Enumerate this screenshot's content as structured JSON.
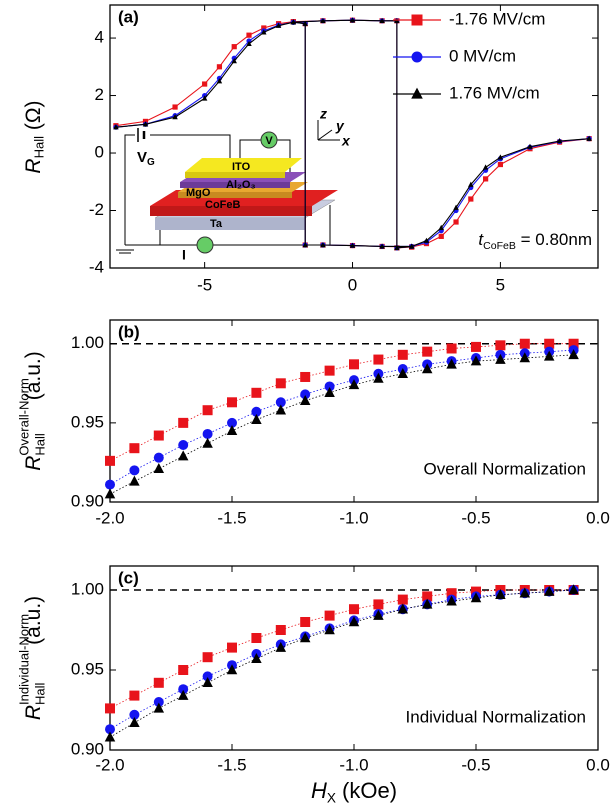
{
  "chart_data": [
    {
      "type": "line",
      "label": "(a)",
      "ylabel": {
        "main": "R",
        "sub": "Hall",
        "unit": " (Ω)"
      },
      "xlim": [
        -8.2,
        8.3
      ],
      "ylim": [
        -4,
        5.15
      ],
      "xticks": [
        -5,
        0,
        5
      ],
      "yticks": [
        -4,
        -2,
        0,
        2,
        4
      ],
      "legend": "upper right",
      "x": [
        -8,
        -7,
        -6,
        -5,
        -4.5,
        -4,
        -3.5,
        -3,
        -2.5,
        -2,
        -1,
        0,
        1,
        1.5,
        1.5,
        2,
        2.5,
        3,
        3.5,
        4,
        4.5,
        5,
        6,
        7,
        8,
        2,
        2,
        1,
        0,
        -1,
        -1.6,
        -1.6,
        -2
      ],
      "series": [
        {
          "name": "-1.76 MV/cm",
          "color": "#e8141b",
          "marker": "square",
          "values": [
            0.95,
            1.1,
            1.6,
            2.4,
            3.0,
            3.7,
            4.1,
            4.35,
            4.5,
            4.57,
            4.6,
            4.62,
            4.6,
            4.6,
            -3.3,
            -3.27,
            -3.15,
            -2.9,
            -2.4,
            -1.6,
            -0.9,
            -0.4,
            0.15,
            0.38,
            0.5,
            null,
            -3.27,
            -3.25,
            -3.22,
            -3.2,
            -3.2,
            4.5,
            4.57
          ]
        },
        {
          "name": "0 MV/cm",
          "color": "#1515f0",
          "marker": "circle",
          "values": [
            0.9,
            1.0,
            1.3,
            2.0,
            2.6,
            3.3,
            3.9,
            4.25,
            4.45,
            4.55,
            4.6,
            4.62,
            4.6,
            4.6,
            -3.3,
            -3.25,
            -3.1,
            -2.7,
            -2.0,
            -1.2,
            -0.6,
            -0.2,
            0.2,
            0.4,
            0.5,
            null,
            -3.25,
            -3.25,
            -3.22,
            -3.2,
            -3.2,
            4.5,
            4.55
          ]
        },
        {
          "name": "1.76 MV/cm",
          "color": "#000000",
          "marker": "triangle",
          "values": [
            0.9,
            1.0,
            1.25,
            1.9,
            2.5,
            3.2,
            3.8,
            4.2,
            4.43,
            4.55,
            4.6,
            4.62,
            4.6,
            4.6,
            -3.3,
            -3.25,
            -3.05,
            -2.6,
            -1.9,
            -1.1,
            -0.5,
            -0.15,
            0.22,
            0.42,
            0.5,
            null,
            -3.25,
            -3.25,
            -3.22,
            -3.2,
            -3.2,
            4.5,
            4.55
          ]
        }
      ],
      "annotation": {
        "main": "t",
        "sub": "CoFeB",
        "unit": " = 0.80nm"
      },
      "inset": {
        "gate": "V",
        "gate_sub": "G",
        "voltmeter": "V",
        "current": "I",
        "axes": [
          "z",
          "y",
          "x"
        ],
        "layers": [
          "ITO",
          "Al₂O₃",
          "MgO",
          "CoFeB",
          "Ta"
        ]
      }
    },
    {
      "type": "scatter",
      "label": "(b)",
      "ylabel": {
        "main": "R",
        "sub": "Hall",
        "sup": "Overall-Norm",
        "unit": " (a.u.)"
      },
      "xlim": [
        -2,
        0
      ],
      "ylim": [
        0.9,
        1.015
      ],
      "xticks": [
        {
          "value": -2,
          "label": "-2.0"
        },
        {
          "value": -1.5,
          "label": "-1.5"
        },
        {
          "value": -1,
          "label": "-1.0"
        },
        {
          "value": -0.5,
          "label": "-0.5"
        },
        {
          "value": 0,
          "label": "0.0"
        }
      ],
      "yticks": [
        {
          "value": 0.9,
          "label": "0.90"
        },
        {
          "value": 0.95,
          "label": "0.95"
        },
        {
          "value": 1,
          "label": "1.00"
        }
      ],
      "hline": 1,
      "x": [
        -2,
        -1.9,
        -1.8,
        -1.7,
        -1.6,
        -1.5,
        -1.4,
        -1.3,
        -1.2,
        -1.1,
        -1,
        -0.9,
        -0.8,
        -0.7,
        -0.6,
        -0.5,
        -0.4,
        -0.3,
        -0.2,
        -0.1
      ],
      "series": [
        {
          "color": "#e8141b",
          "marker": "square",
          "values": [
            0.926,
            0.934,
            0.942,
            0.95,
            0.958,
            0.963,
            0.969,
            0.975,
            0.979,
            0.983,
            0.987,
            0.99,
            0.993,
            0.995,
            0.997,
            0.998,
            0.999,
            1.0,
            1.0,
            1.0
          ]
        },
        {
          "color": "#1515f0",
          "marker": "circle",
          "values": [
            0.911,
            0.92,
            0.928,
            0.936,
            0.943,
            0.95,
            0.957,
            0.963,
            0.968,
            0.973,
            0.977,
            0.981,
            0.984,
            0.987,
            0.989,
            0.991,
            0.993,
            0.994,
            0.995,
            0.996
          ]
        },
        {
          "color": "#000000",
          "marker": "triangle",
          "values": [
            0.905,
            0.913,
            0.921,
            0.929,
            0.937,
            0.945,
            0.952,
            0.958,
            0.964,
            0.969,
            0.974,
            0.978,
            0.981,
            0.984,
            0.987,
            0.989,
            0.99,
            0.991,
            0.992,
            0.993
          ]
        }
      ],
      "annotation": "Overall Normalization"
    },
    {
      "type": "scatter",
      "label": "(c)",
      "ylabel": {
        "main": "R",
        "sub": "Hall",
        "sup": "Individual-Norm",
        "unit": " (a.u.)"
      },
      "xlabel": {
        "main": "H",
        "sub": "X",
        "unit": " (kOe)"
      },
      "xlim": [
        -2,
        0
      ],
      "ylim": [
        0.9,
        1.015
      ],
      "xticks": [
        {
          "value": -2,
          "label": "-2.0"
        },
        {
          "value": -1.5,
          "label": "-1.5"
        },
        {
          "value": -1,
          "label": "-1.0"
        },
        {
          "value": -0.5,
          "label": "-0.5"
        },
        {
          "value": 0,
          "label": "0.0"
        }
      ],
      "yticks": [
        {
          "value": 0.9,
          "label": "0.90"
        },
        {
          "value": 0.95,
          "label": "0.95"
        },
        {
          "value": 1,
          "label": "1.00"
        }
      ],
      "hline": 1,
      "x": [
        -2,
        -1.9,
        -1.8,
        -1.7,
        -1.6,
        -1.5,
        -1.4,
        -1.3,
        -1.2,
        -1.1,
        -1,
        -0.9,
        -0.8,
        -0.7,
        -0.6,
        -0.5,
        -0.4,
        -0.3,
        -0.2,
        -0.1
      ],
      "series": [
        {
          "color": "#e8141b",
          "marker": "square",
          "values": [
            0.926,
            0.934,
            0.942,
            0.95,
            0.958,
            0.964,
            0.97,
            0.975,
            0.98,
            0.984,
            0.988,
            0.991,
            0.994,
            0.996,
            0.998,
            0.999,
            1.0,
            1.0,
            1.0,
            1.0
          ]
        },
        {
          "color": "#1515f0",
          "marker": "circle",
          "values": [
            0.913,
            0.922,
            0.93,
            0.938,
            0.946,
            0.953,
            0.96,
            0.966,
            0.971,
            0.976,
            0.981,
            0.985,
            0.988,
            0.991,
            0.994,
            0.996,
            0.997,
            0.998,
            0.999,
            1.0
          ]
        },
        {
          "color": "#000000",
          "marker": "triangle",
          "values": [
            0.908,
            0.917,
            0.926,
            0.934,
            0.942,
            0.95,
            0.957,
            0.964,
            0.97,
            0.975,
            0.98,
            0.984,
            0.988,
            0.991,
            0.993,
            0.995,
            0.997,
            0.998,
            0.999,
            1.0
          ]
        }
      ],
      "annotation": "Individual Normalization"
    }
  ]
}
